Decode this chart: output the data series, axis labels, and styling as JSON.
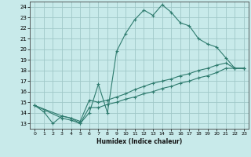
{
  "title": "",
  "xlabel": "Humidex (Indice chaleur)",
  "bg_color": "#c8eaea",
  "grid_color": "#a0c8c8",
  "line_color": "#2e7b6e",
  "xlim": [
    -0.5,
    23.5
  ],
  "ylim": [
    12.5,
    24.5
  ],
  "xticks": [
    0,
    1,
    2,
    3,
    4,
    5,
    6,
    7,
    8,
    9,
    10,
    11,
    12,
    13,
    14,
    15,
    16,
    17,
    18,
    19,
    20,
    21,
    22,
    23
  ],
  "yticks": [
    13,
    14,
    15,
    16,
    17,
    18,
    19,
    20,
    21,
    22,
    23,
    24
  ],
  "line1_x": [
    0,
    1,
    2,
    3,
    4,
    5,
    6,
    7,
    8,
    9,
    10,
    11,
    12,
    13,
    14,
    15,
    16,
    17,
    18,
    19,
    20,
    21,
    22,
    23
  ],
  "line1_y": [
    14.7,
    14.1,
    13.0,
    13.7,
    13.5,
    13.0,
    14.0,
    16.7,
    14.0,
    19.8,
    21.5,
    22.8,
    23.7,
    23.2,
    24.2,
    23.5,
    22.5,
    22.2,
    21.0,
    20.5,
    20.2,
    19.2,
    18.2,
    18.2
  ],
  "line2_x": [
    0,
    3,
    4,
    5,
    6,
    7,
    8,
    9,
    10,
    11,
    12,
    13,
    14,
    15,
    16,
    17,
    18,
    19,
    20,
    21,
    22,
    23
  ],
  "line2_y": [
    14.7,
    13.7,
    13.5,
    13.2,
    15.2,
    15.0,
    15.2,
    15.5,
    15.8,
    16.2,
    16.5,
    16.8,
    17.0,
    17.2,
    17.5,
    17.7,
    18.0,
    18.2,
    18.5,
    18.7,
    18.2,
    18.2
  ],
  "line3_x": [
    0,
    3,
    4,
    5,
    6,
    7,
    8,
    9,
    10,
    11,
    12,
    13,
    14,
    15,
    16,
    17,
    18,
    19,
    20,
    21,
    22,
    23
  ],
  "line3_y": [
    14.7,
    13.5,
    13.3,
    13.0,
    14.5,
    14.5,
    14.8,
    15.0,
    15.3,
    15.5,
    15.8,
    16.0,
    16.3,
    16.5,
    16.8,
    17.0,
    17.3,
    17.5,
    17.8,
    18.2,
    18.2,
    18.2
  ]
}
